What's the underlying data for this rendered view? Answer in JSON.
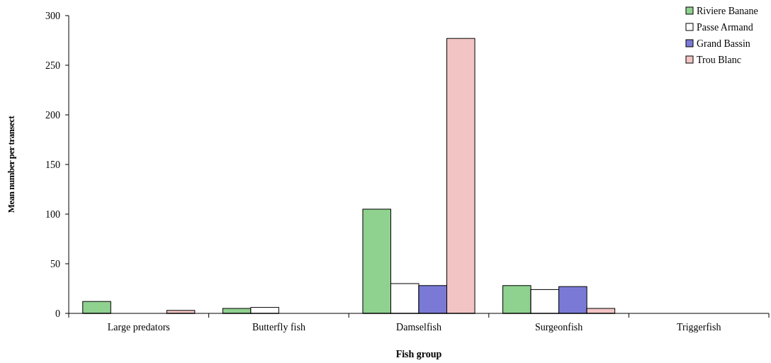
{
  "chart_data": {
    "type": "bar",
    "xlabel": "Fish group",
    "ylabel": "Mean number per transect",
    "categories": [
      "Large predators",
      "Butterfly fish",
      "Damselfish",
      "Surgeonfish",
      "Triggerfish"
    ],
    "series": [
      {
        "name": "Riviere Banane",
        "color": "#8fd18f",
        "values": [
          12,
          5,
          105,
          28,
          0
        ]
      },
      {
        "name": "Passe Armand",
        "color": "#ffffff",
        "values": [
          0,
          6,
          30,
          24,
          0
        ]
      },
      {
        "name": "Grand Bassin",
        "color": "#7a7ad6",
        "values": [
          0,
          0,
          28,
          27,
          0
        ]
      },
      {
        "name": "Trou Blanc",
        "color": "#f2c4c4",
        "values": [
          3,
          0,
          277,
          5,
          0
        ]
      }
    ],
    "ylim": [
      0,
      300
    ],
    "yticks": [
      0,
      50,
      100,
      150,
      200,
      250,
      300
    ],
    "grid": false,
    "legend": "top right"
  }
}
